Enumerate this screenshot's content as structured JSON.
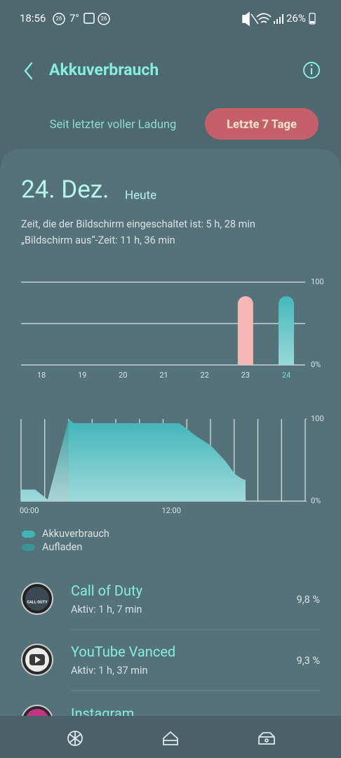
{
  "status_bar": {
    "time": "18:56",
    "badge": "26",
    "temperature": "7°",
    "badge2": "26",
    "battery": "26%"
  },
  "header": {
    "title": "Akkuverbrauch"
  },
  "tabs": [
    "Seit letzter voller Ladung",
    "Letzte 7 Tage"
  ],
  "summary": {
    "date": "24. Dez.",
    "day": "Heute",
    "screen_on": "Zeit, die der Bildschirm eingeschaltet ist: 5 h, 28 min",
    "screen_off": "„Bildschirm aus“-Zeit: 11 h, 36 min"
  },
  "daily_chart": {
    "type": "bar",
    "categories": [
      "18",
      "19",
      "20",
      "21",
      "22",
      "23",
      "24"
    ],
    "values": [
      null,
      null,
      null,
      null,
      null,
      83,
      83
    ],
    "colors": [
      "#f7b7b4",
      "#f7b7b4",
      "#f7b7b4",
      "#f7b7b4",
      "#f7b7b4",
      "#f7b7b4",
      "#45b9bb"
    ],
    "ylim": [
      0,
      100
    ],
    "yticks": [
      {
        "value": 0,
        "label": "0%"
      },
      {
        "value": 50,
        "label": null
      },
      {
        "value": 100,
        "label": "100"
      }
    ],
    "grid": true
  },
  "level_chart": {
    "type": "area",
    "xlim": [
      0,
      24
    ],
    "xticks": [
      {
        "value": 0,
        "label": "00:00"
      },
      {
        "value": 2,
        "label": null
      },
      {
        "value": 4,
        "label": null
      },
      {
        "value": 6,
        "label": null
      },
      {
        "value": 8,
        "label": null
      },
      {
        "value": 10,
        "label": null
      },
      {
        "value": 12,
        "label": "12:00"
      },
      {
        "value": 14,
        "label": null
      },
      {
        "value": 16,
        "label": null
      },
      {
        "value": 18,
        "label": null
      },
      {
        "value": 20,
        "label": null
      },
      {
        "value": 22,
        "label": null
      },
      {
        "value": 24,
        "label": null
      }
    ],
    "ylim": [
      0,
      100
    ],
    "yticks": [
      {
        "value": 0,
        "label": "0%"
      },
      {
        "value": 100,
        "label": "100"
      }
    ],
    "series": [
      {
        "name": "Akkuverbrauch",
        "color": "#3fb5b8",
        "x": [
          0,
          1.2,
          2.25,
          4.03,
          4.44,
          13.33,
          13.93,
          14.81,
          16,
          17.19,
          18.07,
          18.67,
          18.96
        ],
        "values": [
          14,
          14,
          2,
          100,
          95,
          95,
          89,
          79,
          68,
          50,
          33,
          27,
          26
        ]
      },
      {
        "name": "Aufladen",
        "color": "#3a9597",
        "x": [
          2.25,
          4.03
        ],
        "values": [
          2,
          100
        ]
      }
    ]
  },
  "apps": [
    {
      "name": "Call of Duty",
      "active": "Aktiv: 1 h, 7 min",
      "share": "9,8 %"
    },
    {
      "name": "YouTube Vanced",
      "active": "Aktiv: 1 h, 37 min",
      "share": "9,3 %"
    },
    {
      "name": "Instagram"
    }
  ]
}
